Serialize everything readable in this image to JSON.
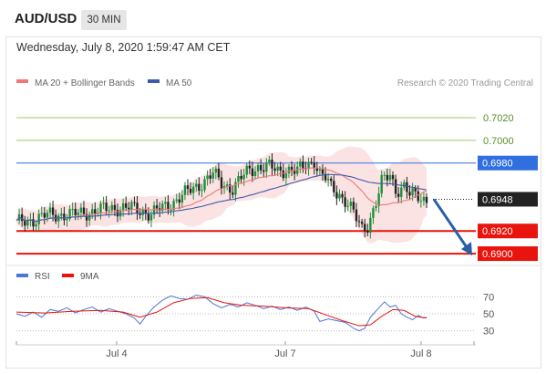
{
  "header": {
    "symbol": "AUD/USD",
    "timeframe": "30 MIN"
  },
  "datetime": "Wednesday, July 8, 2020 1:59:47 AM CET",
  "credit": "Research © 2020 Trading Central",
  "colors": {
    "resistance": "#9ccc65",
    "pivot": "#2f6fe0",
    "support": "#e8140d",
    "current": "#222222",
    "candle_up": "#1e8f3c",
    "candle_down": "#222222",
    "ma20": "#f07878",
    "ma50": "#3a5ba8",
    "bollinger_fill": "#fcdede",
    "rsi": "#4a78d8",
    "rsi_ma": "#e8140d",
    "forecast_arrow": "#2a5fa8"
  },
  "chart_data": [
    {
      "type": "candlestick",
      "title": "AUD/USD",
      "legend": [
        {
          "name": "MA 20 + Bollinger Bands",
          "color": "#f07878"
        },
        {
          "name": "MA 50",
          "color": "#3a5ba8"
        }
      ],
      "x_ticks": [
        "Jul 4",
        "Jul 7",
        "Jul 8"
      ],
      "ylim": [
        0.6892,
        0.7045
      ],
      "levels": [
        {
          "label": "0.7020",
          "value": 0.702,
          "kind": "resistance"
        },
        {
          "label": "0.7000",
          "value": 0.7,
          "kind": "resistance"
        },
        {
          "label": "0.6980",
          "value": 0.698,
          "kind": "pivot"
        },
        {
          "label": "0.6948",
          "value": 0.6948,
          "kind": "current"
        },
        {
          "label": "0.6920",
          "value": 0.692,
          "kind": "support"
        },
        {
          "label": "0.6900",
          "value": 0.69,
          "kind": "support"
        }
      ],
      "price_path": [
        [
          0,
          0.6926
        ],
        [
          5,
          0.693
        ],
        [
          10,
          0.6933
        ],
        [
          15,
          0.6935
        ],
        [
          20,
          0.6934
        ],
        [
          25,
          0.6937
        ],
        [
          30,
          0.6938
        ],
        [
          35,
          0.6941
        ],
        [
          40,
          0.694
        ],
        [
          45,
          0.6938
        ],
        [
          48,
          0.6935
        ],
        [
          52,
          0.694
        ],
        [
          57,
          0.6948
        ],
        [
          61,
          0.6954
        ],
        [
          66,
          0.6963
        ],
        [
          70,
          0.697
        ],
        [
          73,
          0.6962
        ],
        [
          77,
          0.6958
        ],
        [
          80,
          0.6966
        ],
        [
          83,
          0.6974
        ],
        [
          86,
          0.6977
        ],
        [
          90,
          0.6976
        ],
        [
          93,
          0.6973
        ],
        [
          96,
          0.6975
        ],
        [
          100,
          0.6972
        ],
        [
          103,
          0.6978
        ],
        [
          106,
          0.6983
        ],
        [
          108,
          0.697
        ],
        [
          110,
          0.6966
        ],
        [
          112,
          0.6958
        ],
        [
          115,
          0.6953
        ],
        [
          118,
          0.6944
        ],
        [
          121,
          0.693
        ],
        [
          123,
          0.6922
        ],
        [
          125,
          0.6926
        ],
        [
          128,
          0.6945
        ],
        [
          130,
          0.6962
        ],
        [
          133,
          0.697
        ],
        [
          135,
          0.6957
        ],
        [
          138,
          0.6959
        ],
        [
          140,
          0.6951
        ],
        [
          143,
          0.6951
        ],
        [
          146,
          0.6948
        ]
      ],
      "forecast": {
        "from": 0.6948,
        "to": 0.69
      }
    },
    {
      "type": "line",
      "title": "RSI",
      "legend": [
        {
          "name": "RSI",
          "color": "#4a78d8"
        },
        {
          "name": "9MA",
          "color": "#e8140d"
        }
      ],
      "y_ticks": [
        "70",
        "50",
        "30"
      ],
      "ylim": [
        20,
        80
      ],
      "rsi": [
        [
          0,
          50
        ],
        [
          3,
          47
        ],
        [
          6,
          52
        ],
        [
          9,
          46
        ],
        [
          12,
          55
        ],
        [
          15,
          53
        ],
        [
          18,
          57
        ],
        [
          21,
          51
        ],
        [
          24,
          55
        ],
        [
          27,
          58
        ],
        [
          30,
          52
        ],
        [
          33,
          56
        ],
        [
          36,
          53
        ],
        [
          39,
          50
        ],
        [
          42,
          45
        ],
        [
          44,
          38
        ],
        [
          46,
          47
        ],
        [
          49,
          58
        ],
        [
          52,
          66
        ],
        [
          55,
          71
        ],
        [
          58,
          68
        ],
        [
          61,
          67
        ],
        [
          64,
          72
        ],
        [
          67,
          70
        ],
        [
          70,
          62
        ],
        [
          73,
          57
        ],
        [
          76,
          61
        ],
        [
          79,
          58
        ],
        [
          82,
          63
        ],
        [
          85,
          60
        ],
        [
          88,
          56
        ],
        [
          91,
          59
        ],
        [
          94,
          55
        ],
        [
          97,
          58
        ],
        [
          100,
          54
        ],
        [
          103,
          58
        ],
        [
          106,
          53
        ],
        [
          108,
          41
        ],
        [
          111,
          44
        ],
        [
          114,
          42
        ],
        [
          117,
          40
        ],
        [
          120,
          33
        ],
        [
          122,
          30
        ],
        [
          124,
          33
        ],
        [
          126,
          46
        ],
        [
          129,
          57
        ],
        [
          131,
          64
        ],
        [
          133,
          58
        ],
        [
          135,
          60
        ],
        [
          137,
          50
        ],
        [
          139,
          46
        ],
        [
          141,
          43
        ],
        [
          143,
          48
        ],
        [
          145,
          45
        ],
        [
          146,
          46
        ]
      ],
      "rsi_ma": [
        [
          0,
          52
        ],
        [
          10,
          51
        ],
        [
          20,
          53
        ],
        [
          30,
          54
        ],
        [
          38,
          52
        ],
        [
          44,
          46
        ],
        [
          50,
          52
        ],
        [
          56,
          63
        ],
        [
          62,
          68
        ],
        [
          68,
          69
        ],
        [
          74,
          63
        ],
        [
          80,
          60
        ],
        [
          88,
          59
        ],
        [
          96,
          57
        ],
        [
          104,
          56
        ],
        [
          110,
          49
        ],
        [
          116,
          42
        ],
        [
          122,
          36
        ],
        [
          126,
          37
        ],
        [
          130,
          47
        ],
        [
          134,
          55
        ],
        [
          138,
          54
        ],
        [
          142,
          47
        ],
        [
          146,
          45
        ]
      ]
    }
  ]
}
